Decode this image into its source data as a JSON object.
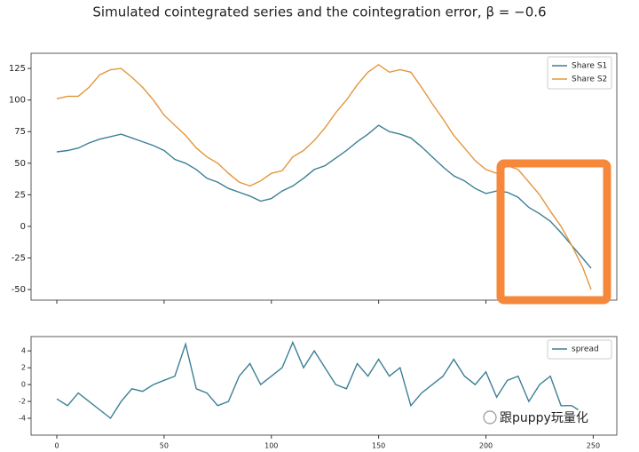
{
  "title": "Simulated cointegrated series and the cointegration error, β = −0.6",
  "watermark": "跟puppy玩量化",
  "chart_data": [
    {
      "type": "line",
      "x": [
        0,
        5,
        10,
        15,
        20,
        25,
        30,
        35,
        40,
        45,
        50,
        55,
        60,
        65,
        70,
        75,
        80,
        85,
        90,
        95,
        100,
        105,
        110,
        115,
        120,
        125,
        130,
        135,
        140,
        145,
        150,
        155,
        160,
        165,
        170,
        175,
        180,
        185,
        190,
        195,
        200,
        205,
        210,
        215,
        220,
        225,
        230,
        235,
        240,
        245,
        249
      ],
      "series": [
        {
          "name": "Share S1",
          "color": "#3b7f96",
          "values": [
            59,
            60,
            62,
            66,
            69,
            71,
            73,
            70,
            67,
            64,
            60,
            53,
            50,
            45,
            38,
            35,
            30,
            27,
            24,
            20,
            22,
            28,
            32,
            38,
            45,
            48,
            54,
            60,
            67,
            73,
            80,
            75,
            73,
            70,
            63,
            55,
            47,
            40,
            36,
            30,
            26,
            28,
            27,
            23,
            15,
            10,
            4,
            -5,
            -15,
            -25,
            -33
          ]
        },
        {
          "name": "Share S2",
          "color": "#e3963b",
          "values": [
            101,
            103,
            103,
            110,
            120,
            124,
            125,
            118,
            110,
            100,
            88,
            80,
            72,
            62,
            55,
            50,
            42,
            35,
            32,
            36,
            42,
            44,
            55,
            60,
            68,
            78,
            90,
            100,
            112,
            122,
            128,
            122,
            124,
            122,
            110,
            97,
            85,
            72,
            62,
            52,
            45,
            42,
            48,
            45,
            35,
            25,
            12,
            0,
            -15,
            -32,
            -50
          ]
        }
      ],
      "xlim": [
        -12,
        261
      ],
      "ylim": [
        -58.4,
        137
      ],
      "yticks": [
        -50,
        -25,
        0,
        25,
        50,
        75,
        100,
        125
      ],
      "legend": "upper right"
    },
    {
      "type": "line",
      "x": [
        0,
        5,
        10,
        15,
        20,
        25,
        30,
        35,
        40,
        45,
        50,
        55,
        60,
        65,
        70,
        75,
        80,
        85,
        90,
        95,
        100,
        105,
        110,
        115,
        120,
        125,
        130,
        135,
        140,
        145,
        150,
        155,
        160,
        165,
        170,
        175,
        180,
        185,
        190,
        195,
        200,
        205,
        210,
        215,
        220,
        225,
        230,
        235,
        240,
        243
      ],
      "series": [
        {
          "name": "spread",
          "color": "#3b7f96",
          "values": [
            -1.7,
            -2.5,
            -1,
            -2,
            -3,
            -4,
            -2,
            -0.5,
            -0.8,
            0,
            0.5,
            1,
            4.8,
            -0.5,
            -1,
            -2.5,
            -2,
            1,
            2.5,
            0,
            1,
            2,
            5,
            2,
            4,
            2,
            0,
            -0.5,
            2.5,
            1,
            3,
            1,
            2,
            -2.5,
            -1,
            0,
            1,
            3,
            1,
            0,
            1.5,
            -1.5,
            0.5,
            1,
            -2,
            0,
            1,
            -2.5,
            -2.5,
            -3
          ]
        }
      ],
      "xlim": [
        -12,
        261
      ],
      "ylim": [
        -6,
        5.7
      ],
      "xticks": [
        0,
        50,
        100,
        150,
        200,
        250
      ],
      "yticks": [
        -4,
        -2,
        0,
        2,
        4
      ],
      "legend": "upper right"
    }
  ]
}
